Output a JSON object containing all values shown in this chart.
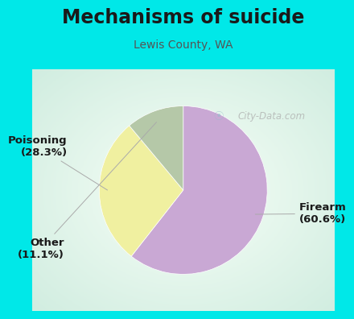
{
  "title": "Mechanisms of suicide",
  "subtitle": "Lewis County, WA",
  "slices": [
    {
      "label": "Firearm\n(60.6%)",
      "value": 60.6,
      "color": "#c9a8d4"
    },
    {
      "label": "Poisoning\n(28.3%)",
      "value": 28.3,
      "color": "#f0f0a0"
    },
    {
      "label": "Other\n(11.1%)",
      "value": 11.1,
      "color": "#b5c8a8"
    }
  ],
  "bg_color": "#00e8e8",
  "title_color": "#1a1a1a",
  "subtitle_color": "#555555",
  "label_color": "#1a1a1a",
  "title_fontsize": 17,
  "subtitle_fontsize": 10,
  "label_fontsize": 9.5,
  "watermark": "City-Data.com",
  "startangle": 90,
  "label_positions": [
    {
      "xt": 1.38,
      "yt": -0.28,
      "ha": "left"
    },
    {
      "xt": -1.38,
      "yt": 0.52,
      "ha": "right"
    },
    {
      "xt": -1.42,
      "yt": -0.7,
      "ha": "right"
    }
  ]
}
